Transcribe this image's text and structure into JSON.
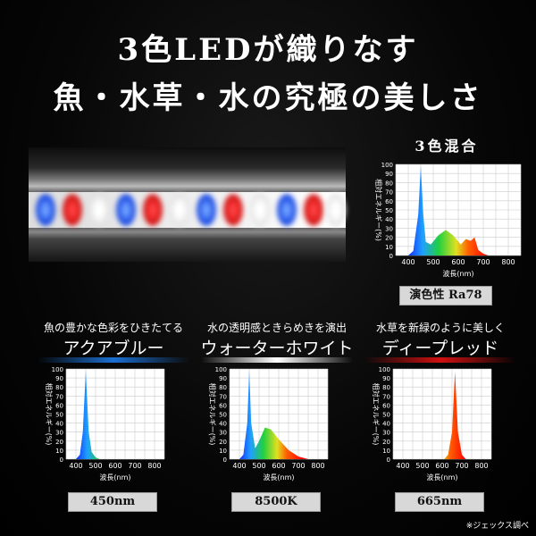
{
  "header": {
    "line1": "3色LEDが織りなす",
    "line2": "魚・水草・水の究極の美しさ"
  },
  "axis_common": {
    "ylabel": "相対エネルギー(%)",
    "xlabel": "波長(nm)",
    "yticks": [
      "0",
      "10",
      "20",
      "30",
      "40",
      "50",
      "60",
      "70",
      "80",
      "90",
      "100"
    ],
    "xticks": [
      "400",
      "500",
      "600",
      "700",
      "800"
    ]
  },
  "colors": {
    "aqua_blue": "#1a6fd0",
    "white": "#ffffff",
    "deep_red": "#d01010",
    "label_bg": "#d8d8d8"
  },
  "panels": {
    "mixed": {
      "title": "3色混合",
      "label": "演色性 Ra78"
    },
    "aqua": {
      "caption": "魚の豊かな色彩をひきたてる",
      "name": "アクアブルー",
      "label": "450nm"
    },
    "water": {
      "caption": "水の透明感ときらめきを演出",
      "name": "ウォーターホワイト",
      "label": "8500K"
    },
    "red": {
      "caption": "水草を新緑のように美しく",
      "name": "ディープレッド",
      "label": "665nm"
    }
  },
  "footnote": "※ジェックス調べ",
  "chart_data": [
    {
      "type": "area",
      "title": "3色混合",
      "xlabel": "波長(nm)",
      "ylabel": "相対エネルギー(%)",
      "xlim": [
        350,
        850
      ],
      "ylim": [
        0,
        100
      ],
      "x": [
        400,
        420,
        440,
        450,
        460,
        470,
        490,
        520,
        550,
        580,
        610,
        630,
        650,
        665,
        680,
        700,
        720
      ],
      "values": [
        0,
        5,
        45,
        98,
        45,
        15,
        12,
        22,
        28,
        22,
        12,
        18,
        16,
        20,
        6,
        2,
        0
      ]
    },
    {
      "type": "area",
      "title": "アクアブルー",
      "xlabel": "波長(nm)",
      "ylabel": "相対エネルギー(%)",
      "xlim": [
        350,
        850
      ],
      "ylim": [
        0,
        100
      ],
      "x": [
        400,
        420,
        435,
        450,
        465,
        480,
        500,
        520
      ],
      "values": [
        0,
        5,
        30,
        98,
        30,
        8,
        2,
        0
      ]
    },
    {
      "type": "area",
      "title": "ウォーターホワイト",
      "xlabel": "波長(nm)",
      "ylabel": "相対エネルギー(%)",
      "xlim": [
        350,
        850
      ],
      "ylim": [
        0,
        100
      ],
      "x": [
        400,
        420,
        440,
        450,
        460,
        480,
        500,
        530,
        560,
        600,
        650,
        700,
        750
      ],
      "values": [
        0,
        5,
        40,
        98,
        40,
        12,
        20,
        35,
        33,
        22,
        10,
        3,
        0
      ]
    },
    {
      "type": "area",
      "title": "ディープレッド",
      "xlabel": "波長(nm)",
      "ylabel": "相対エネルギー(%)",
      "xlim": [
        350,
        850
      ],
      "ylim": [
        0,
        100
      ],
      "x": [
        610,
        630,
        650,
        665,
        680,
        700,
        720
      ],
      "values": [
        0,
        5,
        30,
        97,
        30,
        5,
        0
      ]
    }
  ]
}
